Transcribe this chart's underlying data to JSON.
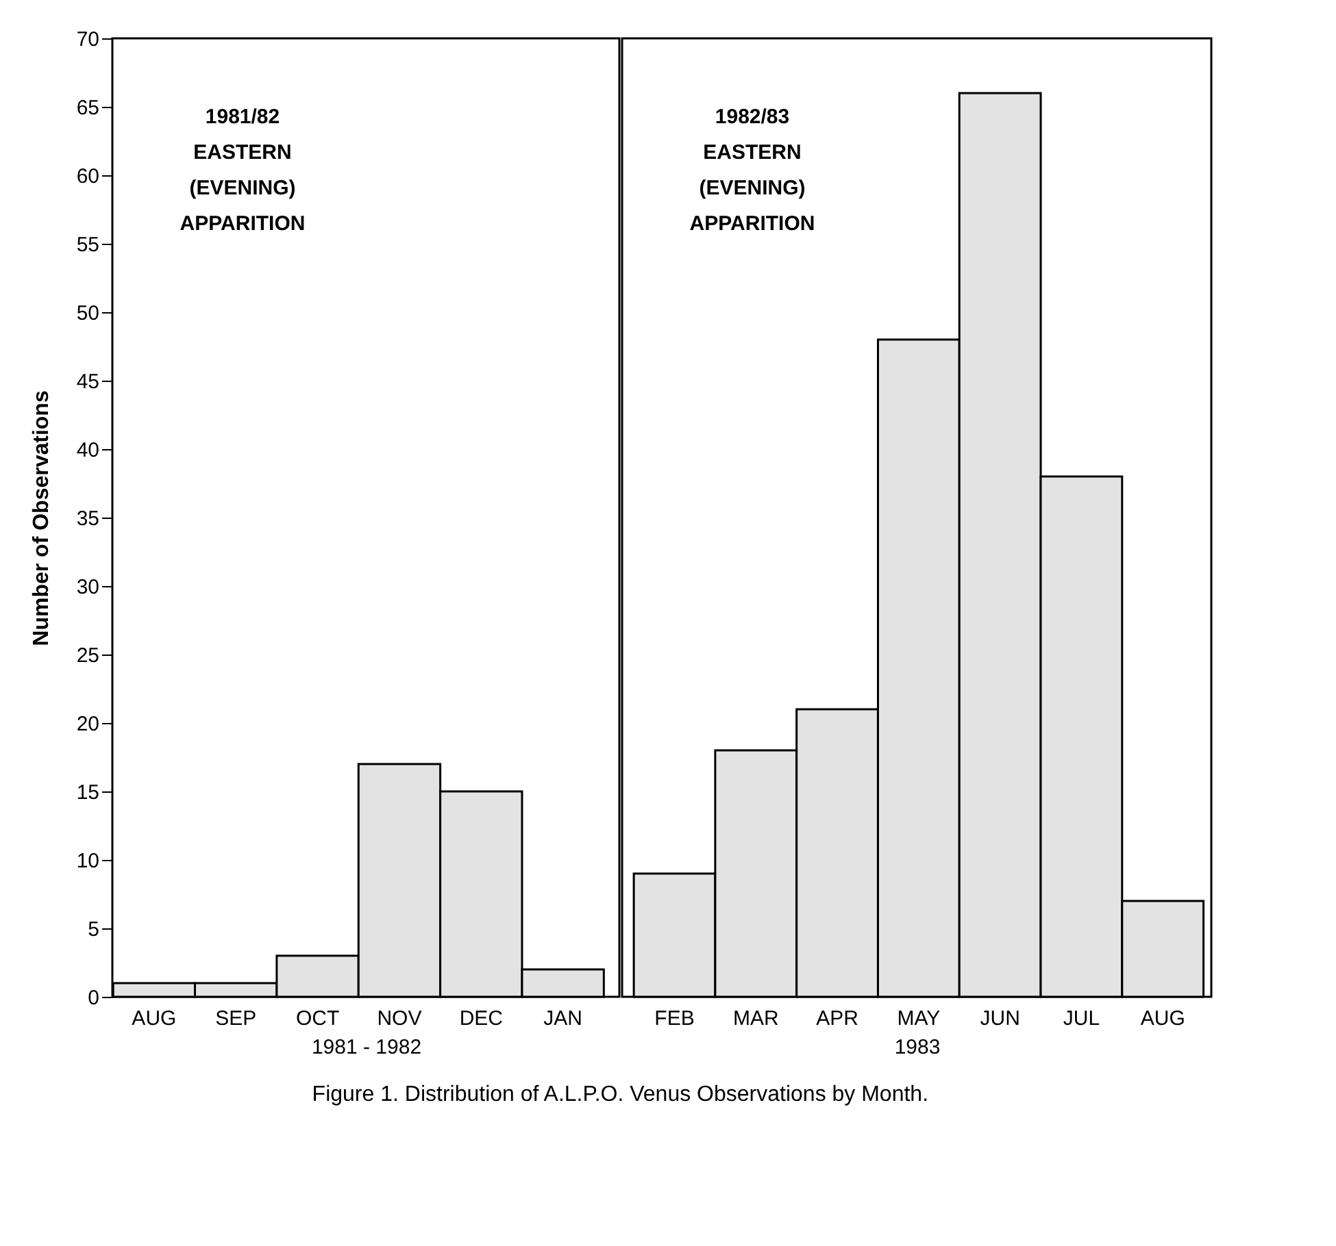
{
  "chart_data": [
    {
      "type": "bar",
      "categories": [
        "AUG",
        "SEP",
        "OCT",
        "NOV",
        "DEC",
        "JAN"
      ],
      "values": [
        1,
        1,
        3,
        17,
        15,
        2
      ],
      "color": "#e3e3e3",
      "xlabel": "1981 - 1982",
      "ylabel": "Number of Observations",
      "ylim": [
        0,
        70
      ],
      "yticks": [
        0,
        5,
        10,
        15,
        20,
        25,
        30,
        35,
        40,
        45,
        50,
        55,
        60,
        65,
        70
      ],
      "grid": false,
      "annotations": [
        "1981/82\nEASTERN\n(EVENING)\nAPPARITION",
        "Figure 1. Distribution of A.L.P.O. Venus Observations by Month."
      ]
    },
    {
      "type": "bar",
      "categories": [
        "FEB",
        "MAR",
        "APR",
        "MAY",
        "JUN",
        "JUL",
        "AUG"
      ],
      "values": [
        9,
        18,
        21,
        48,
        66,
        38,
        7
      ],
      "color": "#e3e3e3",
      "xlabel": "1983",
      "ylim": [
        0,
        70
      ],
      "tick_labels": "x",
      "grid": false,
      "annotations": [
        "1982/83\nEASTERN\n(EVENING)\nAPPARITION"
      ]
    }
  ]
}
